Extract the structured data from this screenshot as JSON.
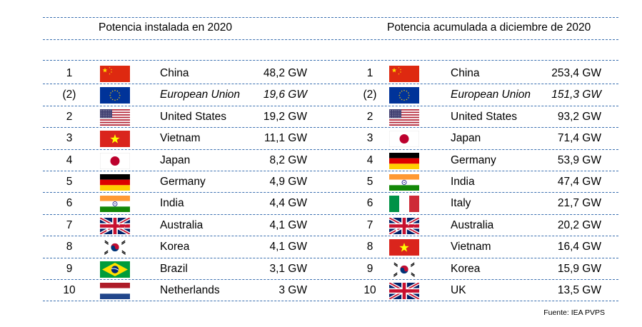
{
  "chart_data": [
    {
      "type": "table",
      "title": "Potencia instalada en 2020",
      "columns": [
        "rank",
        "flag",
        "country",
        "value"
      ],
      "rows": [
        {
          "rank": "1",
          "flag": "cn-flag",
          "country": "China",
          "value": "48,2 GW",
          "italic": false
        },
        {
          "rank": "(2)",
          "flag": "eu-flag",
          "country": "European Union",
          "value": "19,6 GW",
          "italic": true
        },
        {
          "rank": "2",
          "flag": "us-flag",
          "country": "United States",
          "value": "19,2 GW",
          "italic": false
        },
        {
          "rank": "3",
          "flag": "vn-flag",
          "country": "Vietnam",
          "value": "11,1 GW",
          "italic": false
        },
        {
          "rank": "4",
          "flag": "jp-flag",
          "country": "Japan",
          "value": "8,2 GW",
          "italic": false
        },
        {
          "rank": "5",
          "flag": "de-flag",
          "country": "Germany",
          "value": "4,9 GW",
          "italic": false
        },
        {
          "rank": "6",
          "flag": "in-flag",
          "country": "India",
          "value": "4,4 GW",
          "italic": false
        },
        {
          "rank": "7",
          "flag": "au-flag",
          "country": "Australia",
          "value": "4,1 GW",
          "italic": false
        },
        {
          "rank": "8",
          "flag": "kr-flag",
          "country": "Korea",
          "value": "4,1 GW",
          "italic": false
        },
        {
          "rank": "9",
          "flag": "br-flag",
          "country": "Brazil",
          "value": "3,1 GW",
          "italic": false
        },
        {
          "rank": "10",
          "flag": "nl-flag",
          "country": "Netherlands",
          "value": "3 GW",
          "italic": false
        }
      ]
    },
    {
      "type": "table",
      "title": "Potencia acumulada a diciembre de 2020",
      "columns": [
        "rank",
        "flag",
        "country",
        "value"
      ],
      "rows": [
        {
          "rank": "1",
          "flag": "cn-flag",
          "country": "China",
          "value": "253,4 GW",
          "italic": false
        },
        {
          "rank": "(2)",
          "flag": "eu-flag",
          "country": "European Union",
          "value": "151,3 GW",
          "italic": true
        },
        {
          "rank": "2",
          "flag": "us-flag",
          "country": "United States",
          "value": "93,2 GW",
          "italic": false
        },
        {
          "rank": "3",
          "flag": "jp-flag",
          "country": "Japan",
          "value": "71,4 GW",
          "italic": false
        },
        {
          "rank": "4",
          "flag": "de-flag",
          "country": "Germany",
          "value": "53,9 GW",
          "italic": false
        },
        {
          "rank": "5",
          "flag": "in-flag",
          "country": "India",
          "value": "47,4 GW",
          "italic": false
        },
        {
          "rank": "6",
          "flag": "it-flag",
          "country": "Italy",
          "value": "21,7 GW",
          "italic": false
        },
        {
          "rank": "7",
          "flag": "au-flag",
          "country": "Australia",
          "value": "20,2 GW",
          "italic": false
        },
        {
          "rank": "8",
          "flag": "vn-flag",
          "country": "Vietnam",
          "value": "16,4 GW",
          "italic": false
        },
        {
          "rank": "9",
          "flag": "kr-flag",
          "country": "Korea",
          "value": "15,9 GW",
          "italic": false
        },
        {
          "rank": "10",
          "flag": "uk-flag",
          "country": "UK",
          "value": "13,5 GW",
          "italic": false
        }
      ]
    }
  ],
  "source": "Fuente: IEA PVPS",
  "colors": {
    "rule": "#3a6fb0",
    "china_red": "#de2910",
    "eu_blue": "#003399",
    "star_yellow": "#ffde00"
  }
}
